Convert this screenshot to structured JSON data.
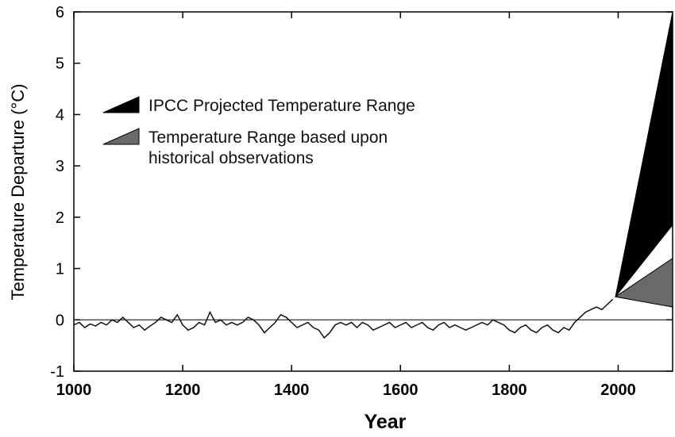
{
  "chart_data": {
    "type": "line",
    "xlabel": "Year",
    "ylabel": "Temperature Departure (°C)",
    "xlim": [
      1000,
      2100
    ],
    "ylim": [
      -1,
      6
    ],
    "xticks": [
      1000,
      1200,
      1400,
      1600,
      1800,
      2000
    ],
    "yticks": [
      -1,
      0,
      1,
      2,
      3,
      4,
      5,
      6
    ],
    "hlines": [
      0
    ],
    "legend": "upper left",
    "series": [
      {
        "type": "line",
        "color": "#111111",
        "x": [
          1000,
          1010,
          1020,
          1030,
          1040,
          1050,
          1060,
          1070,
          1080,
          1090,
          1100,
          1110,
          1120,
          1130,
          1140,
          1150,
          1160,
          1170,
          1180,
          1190,
          1200,
          1210,
          1220,
          1230,
          1240,
          1250,
          1260,
          1270,
          1280,
          1290,
          1300,
          1310,
          1320,
          1330,
          1340,
          1350,
          1360,
          1370,
          1380,
          1390,
          1400,
          1410,
          1420,
          1430,
          1440,
          1450,
          1460,
          1470,
          1480,
          1490,
          1500,
          1510,
          1520,
          1530,
          1540,
          1550,
          1560,
          1570,
          1580,
          1590,
          1600,
          1610,
          1620,
          1630,
          1640,
          1650,
          1660,
          1670,
          1680,
          1690,
          1700,
          1710,
          1720,
          1730,
          1740,
          1750,
          1760,
          1770,
          1780,
          1790,
          1800,
          1810,
          1820,
          1830,
          1840,
          1850,
          1860,
          1870,
          1880,
          1890,
          1900,
          1910,
          1920,
          1930,
          1940,
          1950,
          1960,
          1970,
          1980,
          1990
        ],
        "values": [
          -0.1,
          -0.05,
          -0.15,
          -0.08,
          -0.12,
          -0.05,
          -0.1,
          0.0,
          -0.05,
          0.05,
          -0.05,
          -0.15,
          -0.1,
          -0.2,
          -0.12,
          -0.05,
          0.05,
          0.0,
          -0.05,
          0.1,
          -0.1,
          -0.2,
          -0.15,
          -0.05,
          -0.1,
          0.15,
          -0.05,
          0.0,
          -0.1,
          -0.05,
          -0.1,
          -0.05,
          0.05,
          0.0,
          -0.1,
          -0.25,
          -0.15,
          -0.05,
          0.1,
          0.05,
          -0.05,
          -0.15,
          -0.1,
          -0.05,
          -0.15,
          -0.2,
          -0.35,
          -0.25,
          -0.1,
          -0.05,
          -0.1,
          -0.05,
          -0.15,
          -0.05,
          -0.1,
          -0.2,
          -0.15,
          -0.1,
          -0.05,
          -0.15,
          -0.1,
          -0.05,
          -0.15,
          -0.1,
          -0.05,
          -0.15,
          -0.2,
          -0.1,
          -0.05,
          -0.15,
          -0.1,
          -0.15,
          -0.2,
          -0.15,
          -0.1,
          -0.05,
          -0.1,
          0.0,
          -0.05,
          -0.1,
          -0.2,
          -0.25,
          -0.15,
          -0.1,
          -0.2,
          -0.25,
          -0.15,
          -0.1,
          -0.2,
          -0.25,
          -0.15,
          -0.2,
          -0.05,
          0.05,
          0.15,
          0.2,
          0.25,
          0.2,
          0.3,
          0.4
        ]
      },
      {
        "type": "area",
        "name": "IPCC Projected Temperature Range",
        "color": "#000000",
        "x": [
          1995,
          2100
        ],
        "upper": [
          0.45,
          6
        ],
        "lower": [
          0.45,
          1.85
        ]
      },
      {
        "type": "area",
        "name": "Temperature Range based upon historical observations",
        "color": "#6a6a6a",
        "x": [
          1995,
          2100
        ],
        "upper": [
          0.45,
          1.2
        ],
        "lower": [
          0.45,
          0.25
        ]
      }
    ]
  }
}
